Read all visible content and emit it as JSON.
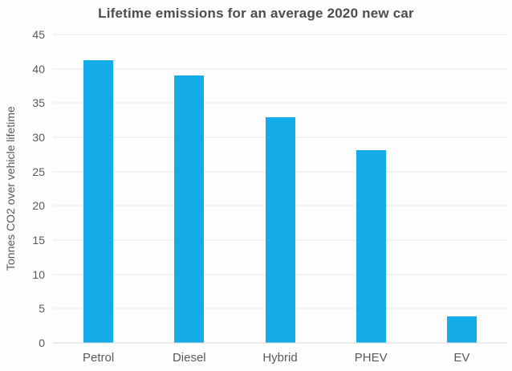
{
  "chart_data": {
    "type": "bar",
    "title": "Lifetime emissions for an average 2020 new car",
    "xlabel": "",
    "ylabel": "Tonnes CO2 over vehicle lifetime",
    "categories": [
      "Petrol",
      "Diesel",
      "Hybrid",
      "PHEV",
      "EV"
    ],
    "values": [
      41.2,
      39.0,
      32.9,
      28.1,
      3.9
    ],
    "ylim": [
      0,
      45
    ],
    "yticks": [
      0,
      5,
      10,
      15,
      20,
      25,
      30,
      35,
      40,
      45
    ],
    "grid": true,
    "legend": "none",
    "colors": {
      "bar": "#14ace8",
      "grid": "#e7e7e7",
      "axis_line": "#d9d9d9",
      "text": "#595959",
      "title": "#4d4d4d",
      "background": "#fdfdfd"
    }
  }
}
